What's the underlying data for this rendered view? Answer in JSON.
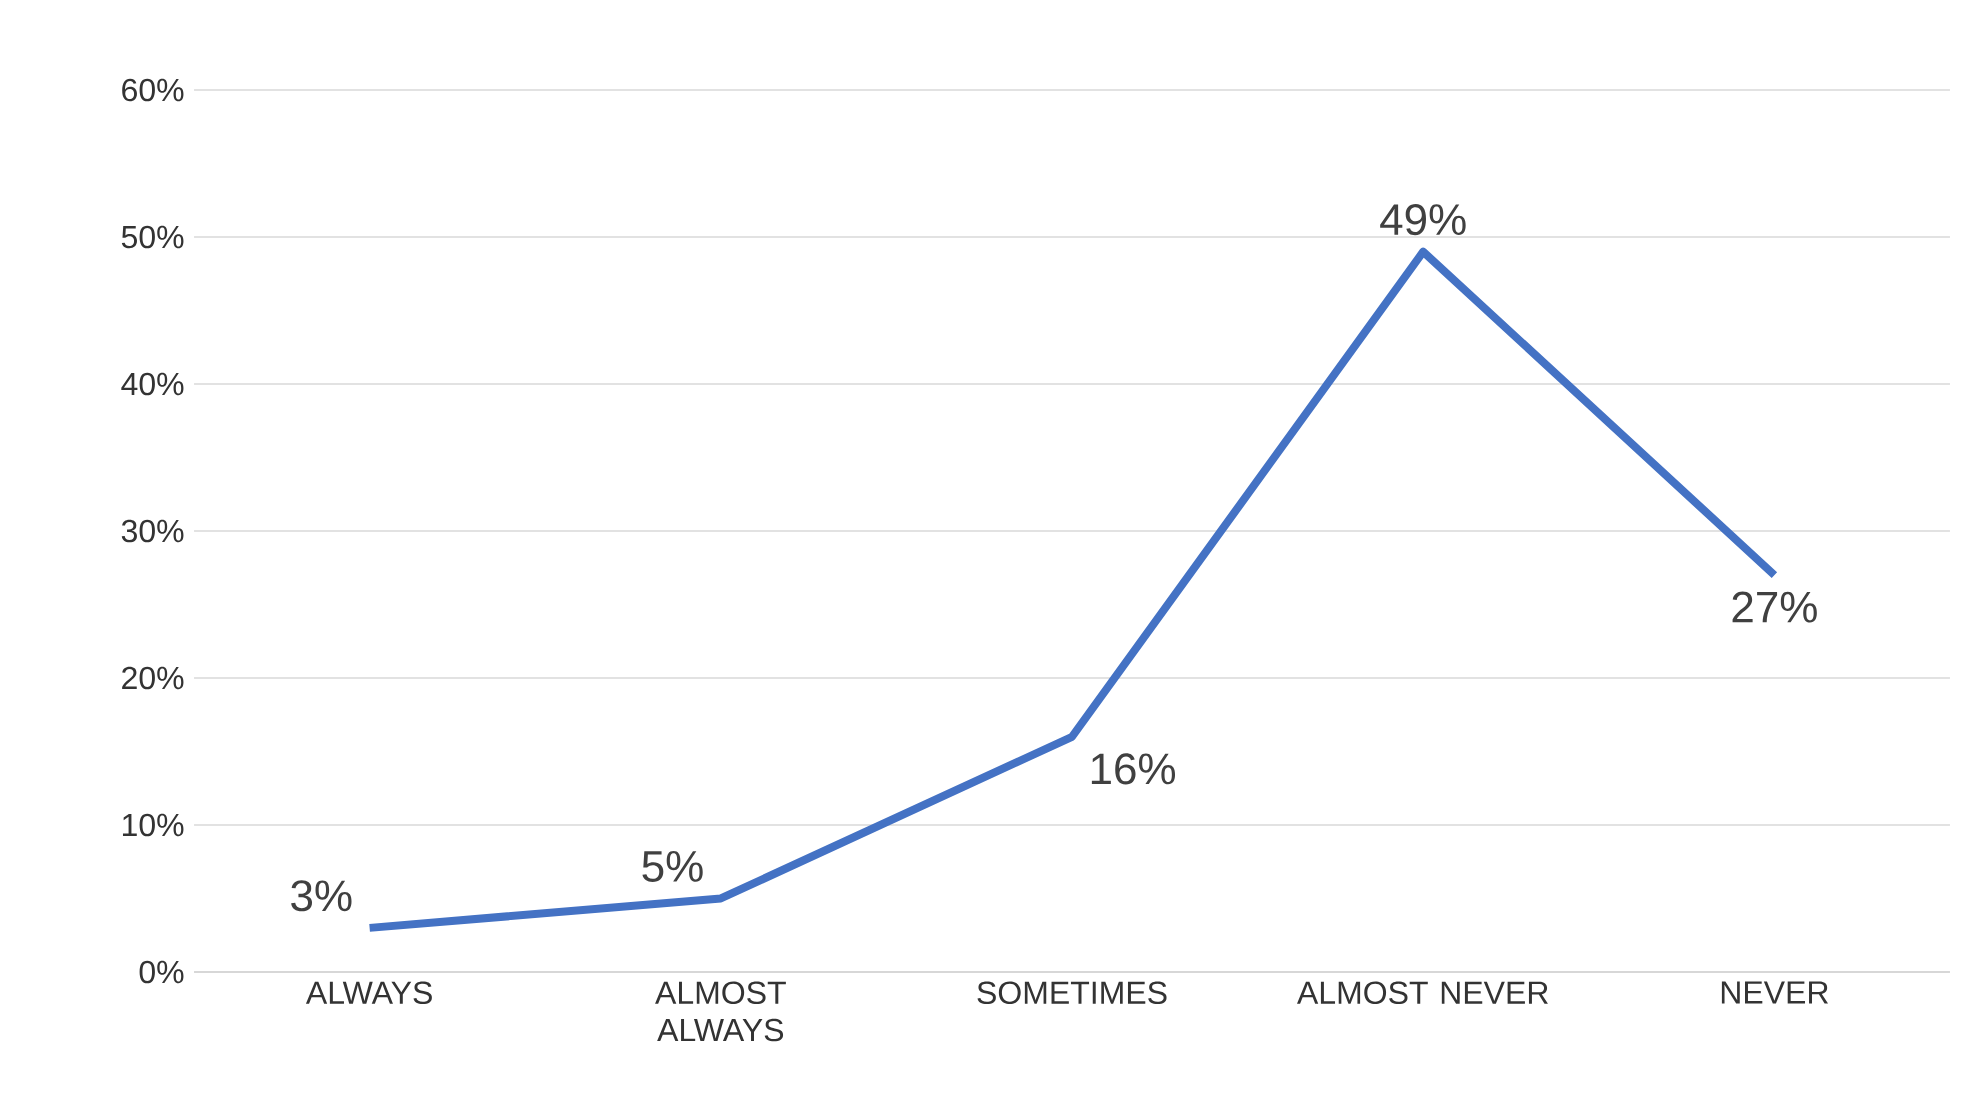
{
  "chart_data": {
    "type": "line",
    "categories": [
      "ALWAYS",
      "ALMOST ALWAYS",
      "SOMETIMES",
      "ALMOST NEVER",
      "NEVER"
    ],
    "values": [
      3,
      5,
      16,
      49,
      27
    ],
    "value_labels": [
      "3%",
      "5%",
      "16%",
      "49%",
      "27%"
    ],
    "color": "#4472c4",
    "ylim": [
      0,
      60
    ],
    "yticks": [
      {
        "value": 0,
        "label": "0%"
      },
      {
        "value": 10,
        "label": "10%"
      },
      {
        "value": 20,
        "label": "20%"
      },
      {
        "value": 30,
        "label": "30%"
      },
      {
        "value": 40,
        "label": "40%"
      },
      {
        "value": 50,
        "label": "50%"
      },
      {
        "value": 60,
        "label": "60%"
      }
    ],
    "grid": "y",
    "marker": "none",
    "line_style": "solid"
  }
}
